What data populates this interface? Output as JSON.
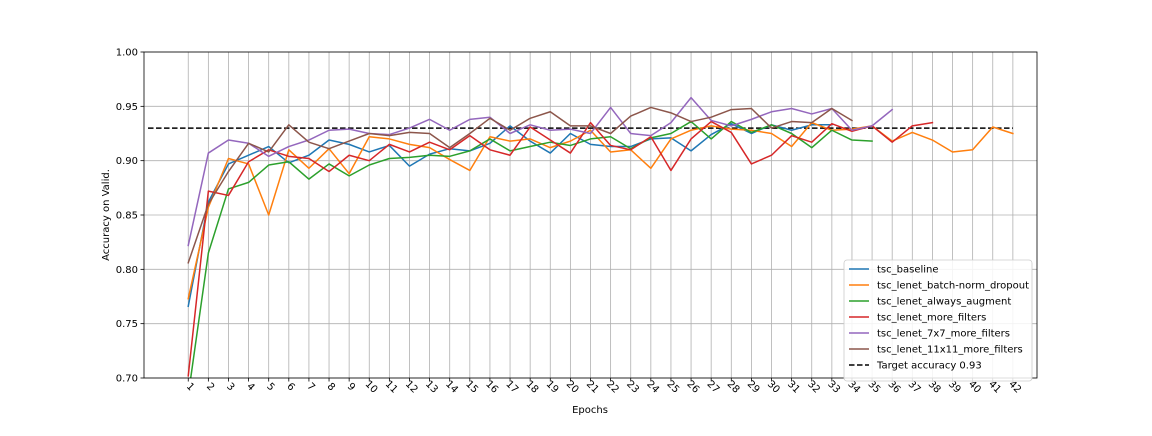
{
  "chart_data": {
    "type": "line",
    "title": "",
    "xlabel": "Epochs",
    "ylabel": "Accuracy on Valid.",
    "ylim": [
      0.7,
      1.0
    ],
    "yticks": [
      0.7,
      0.75,
      0.8,
      0.85,
      0.9,
      0.95,
      1.0
    ],
    "ytick_labels": [
      "0.70",
      "0.75",
      "0.80",
      "0.85",
      "0.90",
      "0.95",
      "1.00"
    ],
    "xlim": [
      -1.2,
      43.2
    ],
    "xtick_labels": [
      "1",
      "2",
      "3",
      "4",
      "5",
      "6",
      "7",
      "8",
      "9",
      "10",
      "11",
      "12",
      "13",
      "14",
      "15",
      "16",
      "17",
      "18",
      "19",
      "20",
      "21",
      "22",
      "23",
      "24",
      "25",
      "26",
      "27",
      "28",
      "29",
      "30",
      "31",
      "32",
      "33",
      "34",
      "35",
      "36",
      "37",
      "38",
      "39",
      "40",
      "41",
      "42"
    ],
    "grid": true,
    "legend_position": "lower right",
    "series": [
      {
        "name": "tsc_baseline",
        "color": "#1f77b4",
        "values": [
          0.766,
          0.862,
          0.897,
          0.905,
          0.913,
          0.898,
          0.905,
          0.919,
          0.915,
          0.908,
          0.914,
          0.895,
          0.906,
          0.911,
          0.909,
          0.916,
          0.932,
          0.918,
          0.907,
          0.925,
          0.915,
          0.913,
          0.913,
          0.92,
          0.921,
          0.909,
          0.924,
          0.934,
          0.925,
          0.933,
          0.928,
          0.933,
          0.933
        ]
      },
      {
        "name": "tsc_lenet_batch-norm_dropout",
        "color": "#ff7f0e",
        "values": [
          0.773,
          0.857,
          0.902,
          0.897,
          0.85,
          0.91,
          0.893,
          0.911,
          0.888,
          0.922,
          0.92,
          0.915,
          0.912,
          0.901,
          0.891,
          0.922,
          0.918,
          0.92,
          0.912,
          0.918,
          0.928,
          0.908,
          0.91,
          0.893,
          0.92,
          0.928,
          0.932,
          0.929,
          0.928,
          0.925,
          0.913,
          0.935,
          0.928,
          0.929,
          0.932,
          0.918,
          0.926,
          0.919,
          0.908,
          0.91,
          0.931,
          0.925
        ]
      },
      {
        "name": "tsc_lenet_always_augment",
        "color": "#2ca02c",
        "values": [
          0.684,
          0.815,
          0.874,
          0.88,
          0.896,
          0.899,
          0.883,
          0.897,
          0.886,
          0.896,
          0.902,
          0.903,
          0.905,
          0.904,
          0.909,
          0.92,
          0.909,
          0.913,
          0.917,
          0.914,
          0.92,
          0.922,
          0.911,
          0.921,
          0.925,
          0.936,
          0.92,
          0.936,
          0.926,
          0.933,
          0.925,
          0.912,
          0.928,
          0.919,
          0.918
        ]
      },
      {
        "name": "tsc_lenet_more_filters",
        "color": "#d62728",
        "values": [
          0.702,
          0.872,
          0.868,
          0.899,
          0.91,
          0.904,
          0.902,
          0.89,
          0.905,
          0.9,
          0.915,
          0.908,
          0.917,
          0.91,
          0.923,
          0.91,
          0.905,
          0.931,
          0.919,
          0.907,
          0.935,
          0.914,
          0.91,
          0.922,
          0.891,
          0.92,
          0.936,
          0.926,
          0.897,
          0.905,
          0.923,
          0.917,
          0.934,
          0.927,
          0.932,
          0.917,
          0.932,
          0.935
        ]
      },
      {
        "name": "tsc_lenet_7x7_more_filters",
        "color": "#9467bd",
        "values": [
          0.822,
          0.907,
          0.919,
          0.916,
          0.904,
          0.913,
          0.919,
          0.928,
          0.929,
          0.925,
          0.924,
          0.93,
          0.938,
          0.928,
          0.938,
          0.94,
          0.925,
          0.933,
          0.928,
          0.929,
          0.925,
          0.949,
          0.925,
          0.923,
          0.935,
          0.958,
          0.937,
          0.932,
          0.938,
          0.945,
          0.948,
          0.943,
          0.948,
          0.928,
          0.932,
          0.947
        ]
      },
      {
        "name": "tsc_lenet_11x11_more_filters",
        "color": "#8c564b",
        "values": [
          0.806,
          0.86,
          0.89,
          0.916,
          0.908,
          0.933,
          0.917,
          0.911,
          0.918,
          0.925,
          0.923,
          0.926,
          0.925,
          0.912,
          0.925,
          0.939,
          0.928,
          0.939,
          0.945,
          0.932,
          0.932,
          0.925,
          0.941,
          0.949,
          0.944,
          0.936,
          0.94,
          0.947,
          0.948,
          0.93,
          0.936,
          0.935,
          0.948,
          0.937
        ]
      }
    ],
    "target": {
      "name": "Target accuracy 0.93",
      "value": 0.93,
      "color": "#000000",
      "x_range": [
        -1,
        42
      ]
    }
  }
}
